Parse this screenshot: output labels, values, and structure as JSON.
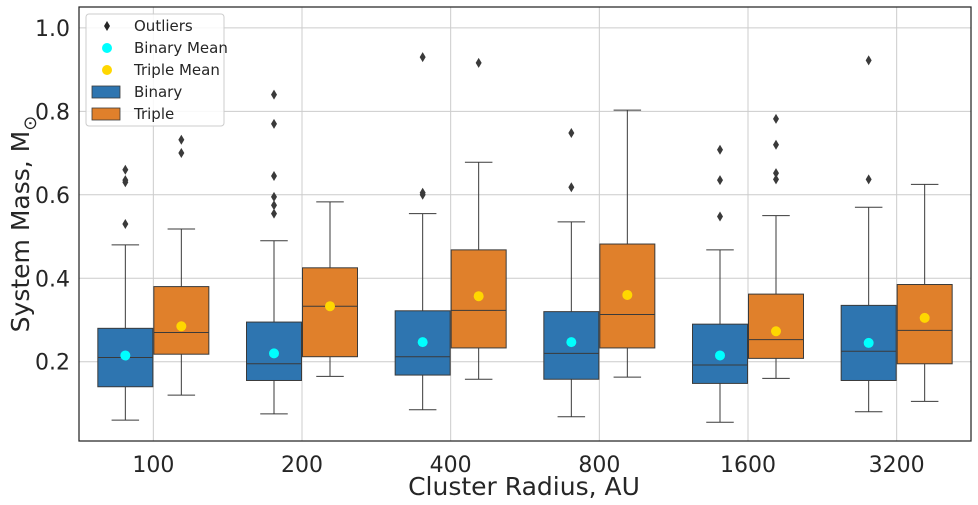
{
  "chart_data": {
    "type": "box",
    "xlabel": "Cluster Radius, AU",
    "ylabel": "System Mass, M",
    "ylabel_subscript": "⊙",
    "ylim": [
      0.01,
      1.05
    ],
    "yticks": [
      0.2,
      0.4,
      0.6,
      0.8,
      1.0
    ],
    "ytick_labels": [
      "0.2",
      "0.4",
      "0.6",
      "0.8",
      "1.0"
    ],
    "grid": true,
    "legend_position": "top-left",
    "categories": [
      "100",
      "200",
      "400",
      "800",
      "1600",
      "3200"
    ],
    "legend": [
      {
        "label": "Outliers",
        "kind": "diamond",
        "color": "#262626"
      },
      {
        "label": "Binary Mean",
        "kind": "dot",
        "color": "#00ffff"
      },
      {
        "label": "Triple Mean",
        "kind": "dot",
        "color": "#ffd700"
      },
      {
        "label": "Binary",
        "kind": "patch",
        "color": "#2e75b0"
      },
      {
        "label": "Triple",
        "kind": "patch",
        "color": "#e0802b"
      }
    ],
    "series": [
      {
        "name": "Binary",
        "color": "#2e75b0",
        "mean_color": "#00ffff",
        "boxes": [
          {
            "whislo": 0.06,
            "q1": 0.14,
            "med": 0.21,
            "q3": 0.28,
            "whishi": 0.48,
            "mean": 0.215,
            "fliers": [
              0.53,
              0.63,
              0.635,
              0.66
            ]
          },
          {
            "whislo": 0.075,
            "q1": 0.155,
            "med": 0.195,
            "q3": 0.295,
            "whishi": 0.49,
            "mean": 0.22,
            "fliers": [
              0.555,
              0.575,
              0.595,
              0.645,
              0.77,
              0.84
            ]
          },
          {
            "whislo": 0.085,
            "q1": 0.168,
            "med": 0.212,
            "q3": 0.322,
            "whishi": 0.555,
            "mean": 0.247,
            "fliers": [
              0.6,
              0.605,
              0.93
            ]
          },
          {
            "whislo": 0.068,
            "q1": 0.158,
            "med": 0.22,
            "q3": 0.32,
            "whishi": 0.535,
            "mean": 0.247,
            "fliers": [
              0.618,
              0.748
            ]
          },
          {
            "whislo": 0.055,
            "q1": 0.148,
            "med": 0.192,
            "q3": 0.29,
            "whishi": 0.468,
            "mean": 0.215,
            "fliers": [
              0.548,
              0.635,
              0.708
            ]
          },
          {
            "whislo": 0.08,
            "q1": 0.155,
            "med": 0.225,
            "q3": 0.335,
            "whishi": 0.57,
            "mean": 0.245,
            "fliers": [
              0.637,
              0.922
            ]
          }
        ]
      },
      {
        "name": "Triple",
        "color": "#e0802b",
        "mean_color": "#ffd700",
        "boxes": [
          {
            "whislo": 0.12,
            "q1": 0.218,
            "med": 0.27,
            "q3": 0.38,
            "whishi": 0.518,
            "mean": 0.285,
            "fliers": [
              0.7,
              0.732
            ]
          },
          {
            "whislo": 0.165,
            "q1": 0.212,
            "med": 0.333,
            "q3": 0.425,
            "whishi": 0.583,
            "mean": 0.333,
            "fliers": []
          },
          {
            "whislo": 0.158,
            "q1": 0.233,
            "med": 0.323,
            "q3": 0.468,
            "whishi": 0.678,
            "mean": 0.357,
            "fliers": [
              0.916
            ]
          },
          {
            "whislo": 0.163,
            "q1": 0.233,
            "med": 0.313,
            "q3": 0.482,
            "whishi": 0.803,
            "mean": 0.36,
            "fliers": []
          },
          {
            "whislo": 0.16,
            "q1": 0.208,
            "med": 0.253,
            "q3": 0.362,
            "whishi": 0.55,
            "mean": 0.273,
            "fliers": [
              0.637,
              0.652,
              0.72,
              0.782
            ]
          },
          {
            "whislo": 0.105,
            "q1": 0.195,
            "med": 0.275,
            "q3": 0.385,
            "whishi": 0.625,
            "mean": 0.305,
            "fliers": []
          }
        ]
      }
    ]
  }
}
